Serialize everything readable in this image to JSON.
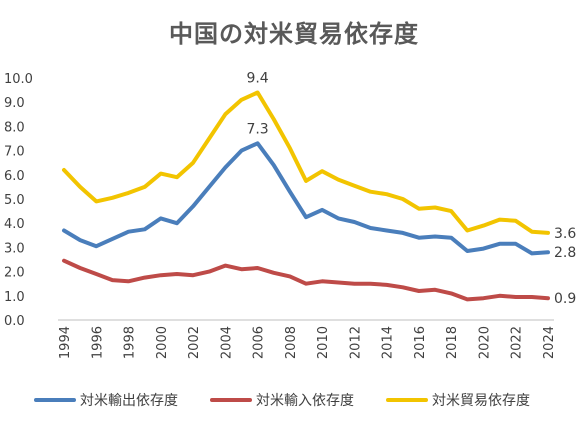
{
  "chart_data": {
    "type": "line",
    "title": "中国の対米貿易依存度",
    "xlabel": "",
    "ylabel": "",
    "x": [
      1994,
      1995,
      1996,
      1997,
      1998,
      1999,
      2000,
      2001,
      2002,
      2003,
      2004,
      2005,
      2006,
      2007,
      2008,
      2009,
      2010,
      2011,
      2012,
      2013,
      2014,
      2015,
      2016,
      2017,
      2018,
      2019,
      2020,
      2021,
      2022,
      2023,
      2024
    ],
    "x_tick_labels": [
      "1994",
      "1996",
      "1998",
      "2000",
      "2002",
      "2004",
      "2006",
      "2008",
      "2010",
      "2012",
      "2014",
      "2016",
      "2018",
      "2020",
      "2022",
      "2024"
    ],
    "y_tick_labels": [
      "0.0",
      "1.0",
      "2.0",
      "3.0",
      "4.0",
      "5.0",
      "6.0",
      "7.0",
      "8.0",
      "9.0",
      "10.0"
    ],
    "ylim": [
      0,
      10
    ],
    "grid": false,
    "legend_position": "bottom",
    "series": [
      {
        "name": "対米輸出依存度",
        "color": "#4a7ebb",
        "values": [
          3.7,
          3.3,
          3.05,
          3.35,
          3.65,
          3.75,
          4.2,
          4.0,
          4.7,
          5.5,
          6.3,
          7.0,
          7.3,
          6.4,
          5.3,
          4.25,
          4.55,
          4.2,
          4.05,
          3.8,
          3.7,
          3.6,
          3.4,
          3.45,
          3.4,
          2.85,
          2.95,
          3.15,
          3.15,
          2.75,
          2.8
        ]
      },
      {
        "name": "対米輸入依存度",
        "color": "#be4b48",
        "values": [
          2.45,
          2.15,
          1.9,
          1.65,
          1.6,
          1.75,
          1.85,
          1.9,
          1.85,
          2.0,
          2.25,
          2.1,
          2.15,
          1.95,
          1.8,
          1.5,
          1.6,
          1.55,
          1.5,
          1.5,
          1.45,
          1.35,
          1.2,
          1.25,
          1.1,
          0.85,
          0.9,
          1.0,
          0.95,
          0.95,
          0.9
        ]
      },
      {
        "name": "対米貿易依存度",
        "color": "#f2c400",
        "values": [
          6.2,
          5.5,
          4.9,
          5.05,
          5.25,
          5.5,
          6.05,
          5.9,
          6.5,
          7.5,
          8.5,
          9.1,
          9.4,
          8.3,
          7.1,
          5.75,
          6.15,
          5.8,
          5.55,
          5.3,
          5.2,
          5.0,
          4.6,
          4.65,
          4.5,
          3.7,
          3.9,
          4.15,
          4.1,
          3.65,
          3.6
        ]
      }
    ],
    "data_labels": [
      {
        "series": 2,
        "index": 12,
        "text": "9.4"
      },
      {
        "series": 0,
        "index": 12,
        "text": "7.3"
      },
      {
        "series": 2,
        "index": 30,
        "text": "3.6"
      },
      {
        "series": 0,
        "index": 30,
        "text": "2.8"
      },
      {
        "series": 1,
        "index": 30,
        "text": "0.9"
      }
    ]
  }
}
